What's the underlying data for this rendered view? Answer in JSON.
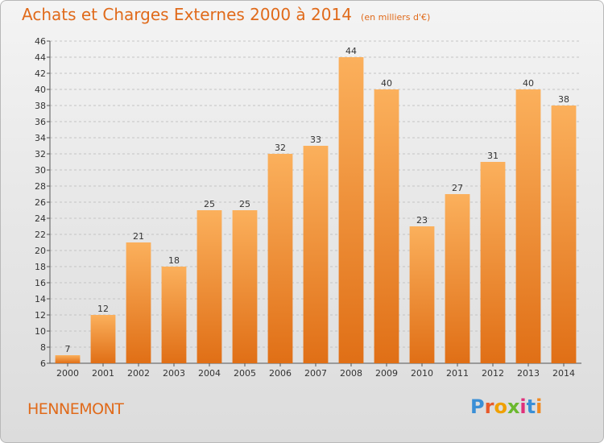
{
  "title": "Achats et Charges Externes 2000 à 2014",
  "unit": "(en milliers d'€)",
  "commune": "HENNEMONT",
  "logo": {
    "text": "Proxiti",
    "colors": [
      "#3a8fd6",
      "#e85a2a",
      "#f0a000",
      "#6bb82e",
      "#e0307a",
      "#3a8fd6",
      "#f08a20"
    ]
  },
  "colors": {
    "title": "#e06a1a",
    "bar_top": "#fbb05c",
    "bar_bottom": "#e06f16",
    "grid": "#c4c4c4",
    "axis": "#555555"
  },
  "chart_data": {
    "type": "bar",
    "categories": [
      "2000",
      "2001",
      "2002",
      "2003",
      "2004",
      "2005",
      "2006",
      "2007",
      "2008",
      "2009",
      "2010",
      "2011",
      "2012",
      "2013",
      "2014"
    ],
    "values": [
      7,
      12,
      21,
      18,
      25,
      25,
      32,
      33,
      44,
      40,
      23,
      27,
      31,
      40,
      38
    ],
    "ylim": [
      6,
      46
    ],
    "ytick_step": 2,
    "grid": true,
    "data_labels": true
  }
}
